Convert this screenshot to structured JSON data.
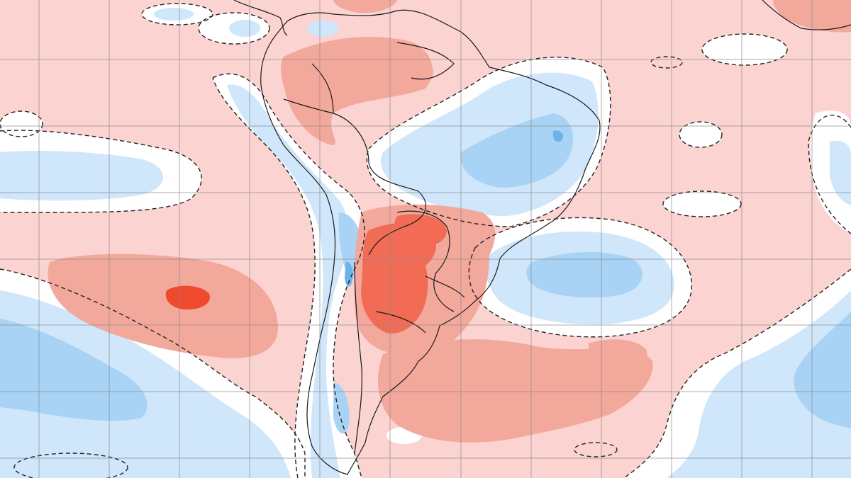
{
  "map": {
    "type": "anomaly-map",
    "region": "South America",
    "text_labels": [],
    "colors": {
      "warm_weak": "#fbd3d0",
      "warm_moderate": "#f3a89c",
      "warm_strong": "#f26b55",
      "warm_extreme": "#f04a2e",
      "neutral": "#ffffff",
      "cool_weak": "#cfe6fb",
      "cool_moderate": "#a9d3f4",
      "cool_strong": "#6ab4ea",
      "cool_extreme": "#3b94dc",
      "gridline": "#8a8a8a",
      "coastline": "#1a1a1a",
      "contour_dashed": "#222222"
    },
    "grid": {
      "visible": true,
      "vertical_lines": 12,
      "horizontal_lines": 7
    },
    "legend": "none"
  }
}
